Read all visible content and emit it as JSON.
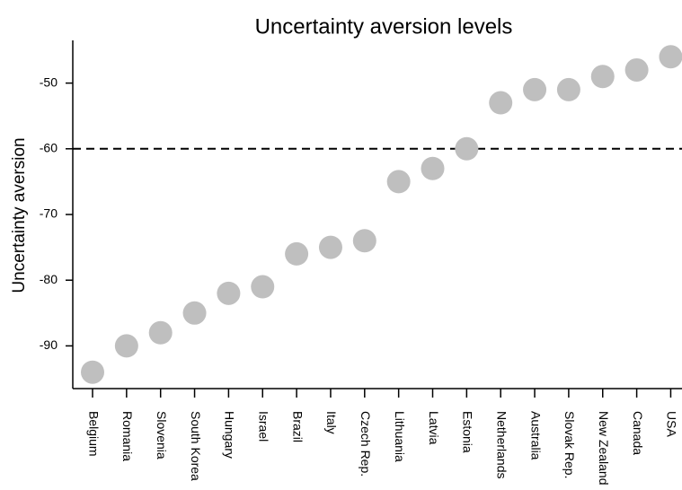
{
  "chart_data": {
    "type": "scatter",
    "title": "Uncertainty aversion levels",
    "y_label": "Uncertainty aversion",
    "categories": [
      "Belgium",
      "Romania",
      "Slovenia",
      "South Korea",
      "Hungary",
      "Israel",
      "Brazil",
      "Italy",
      "Czech Rep.",
      "Lithuania",
      "Latvia",
      "Estonia",
      "Netherlands",
      "Australia",
      "Slovak Rep.",
      "New Zealand",
      "Canada",
      "USA"
    ],
    "values": [
      -94,
      -90,
      -88,
      -85,
      -82,
      -81,
      -76,
      -75,
      -74,
      -65,
      -63,
      -60,
      -53,
      -51,
      -51,
      -49,
      -48,
      -46
    ],
    "color": "#bfbfbf",
    "reference_line": -60,
    "ylim": [
      -96.5,
      -43.5
    ],
    "yticks": [
      -90,
      -80,
      -70,
      -60,
      -50
    ],
    "grid": false
  }
}
